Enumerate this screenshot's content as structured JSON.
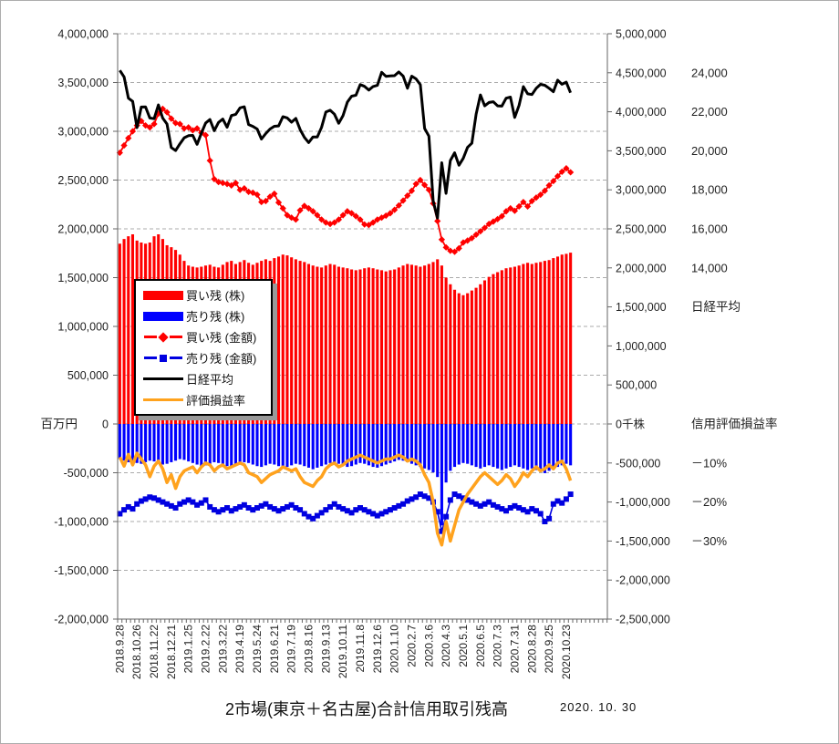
{
  "title": "2市場(東京＋名古屋)合計信用取引残高",
  "as_of_date": "2020. 10. 30",
  "units": {
    "left_axis_unit": "百万円",
    "right_axis_zero_label": "0千株"
  },
  "annotations": {
    "nikkei_label": "日経平均",
    "ratio_header": "信用評価損益率"
  },
  "legend": [
    {
      "label": "買い残 (株)",
      "type": "bar",
      "color": "#ff0000"
    },
    {
      "label": "売り残 (株)",
      "type": "bar",
      "color": "#0000ff"
    },
    {
      "label": "買い残 (金額)",
      "type": "line-diamond",
      "color": "#ff0000"
    },
    {
      "label": "売り残 (金額)",
      "type": "line-square",
      "color": "#0000e0"
    },
    {
      "label": "日経平均",
      "type": "line",
      "color": "#000000"
    },
    {
      "label": "評価損益率",
      "type": "line",
      "color": "#ffa21d"
    }
  ],
  "colors": {
    "red": "#ff0000",
    "blue": "#0000ff",
    "dark_blue": "#0000e0",
    "black": "#000000",
    "orange": "#ffa21d",
    "grid": "#ababab",
    "axis": "#666666"
  },
  "chart_data": {
    "type": "bar",
    "note": "combo chart: bars on right share axis (千株), amount lines on left axis (百万円), nikkei and ratio on annotation scales",
    "left_axis": {
      "min": -2000000,
      "max": 4000000,
      "step": 500000,
      "labels": [
        "4,000,000",
        "3,500,000",
        "3,000,000",
        "2,500,000",
        "2,000,000",
        "1,500,000",
        "1,000,000",
        "500,000",
        "0",
        "-500,000",
        "-1,000,000",
        "-1,500,000",
        "-2,000,000"
      ]
    },
    "right_axis": {
      "min": -2500000,
      "max": 5000000,
      "step": 500000,
      "labels": [
        "5,000,000",
        "4,500,000",
        "4,000,000",
        "3,500,000",
        "3,000,000",
        "2,500,000",
        "2,000,000",
        "1,500,000",
        "1,000,000",
        "500,000",
        "0千株",
        "-500,000",
        "-1,000,000",
        "-1,500,000",
        "-2,000,000",
        "-2,500,000"
      ]
    },
    "nikkei_scale": {
      "labels": [
        "24,000",
        "22,000",
        "20,000",
        "18,000",
        "16,000",
        "14,000"
      ],
      "values": [
        24000,
        22000,
        20000,
        18000,
        16000,
        14000
      ]
    },
    "ratio_scale": {
      "labels": [
        "－10%",
        "－20%",
        "－30%"
      ],
      "values": [
        -10,
        -20,
        -30
      ]
    },
    "n_points": 106,
    "tick_every": 4,
    "tick_labels": [
      "2018.9.28",
      "2018.10.26",
      "2018.11.22",
      "2018.12.21",
      "2019.1.25",
      "2019.2.22",
      "2019.3.22",
      "2019.4.19",
      "2019.5.24",
      "2019.6.21",
      "2019.7.19",
      "2019.8.16",
      "2019.9.13",
      "2019.10.11",
      "2019.11.8",
      "2019.12.6",
      "2020.1.10",
      "2020.2.7",
      "2020.3.6",
      "2020.4.3",
      "2020.5.1",
      "2020.6.5",
      "2020.7.3",
      "2020.7.31",
      "2020.8.28",
      "2020.9.25",
      "2020.10.23"
    ],
    "series": [
      {
        "name": "買い残 (株)",
        "unit": "千株",
        "axis": "right",
        "style": "bar",
        "color": "#ff0000",
        "values": [
          2310,
          2370,
          2405,
          2430,
          2350,
          2325,
          2310,
          2325,
          2405,
          2430,
          2370,
          2290,
          2265,
          2230,
          2170,
          2090,
          2030,
          2015,
          2005,
          2015,
          2030,
          2040,
          2015,
          2005,
          2040,
          2075,
          2090,
          2050,
          2075,
          2100,
          2065,
          2040,
          2065,
          2090,
          2110,
          2090,
          2125,
          2145,
          2170,
          2160,
          2135,
          2110,
          2090,
          2075,
          2050,
          2030,
          2015,
          2005,
          2030,
          2050,
          2040,
          2015,
          2005,
          1995,
          1980,
          1970,
          1980,
          1995,
          2005,
          1995,
          1980,
          1970,
          1955,
          1970,
          1980,
          2005,
          2030,
          2050,
          2040,
          2030,
          2015,
          2030,
          2050,
          2075,
          2110,
          2030,
          1875,
          1790,
          1720,
          1675,
          1650,
          1675,
          1710,
          1745,
          1790,
          1840,
          1885,
          1920,
          1945,
          1970,
          1995,
          2005,
          2015,
          2030,
          2050,
          2065,
          2050,
          2065,
          2075,
          2090,
          2100,
          2125,
          2145,
          2170,
          2180,
          2195
        ],
        "scale": 1000
      },
      {
        "name": "売り残 (株)",
        "unit": "千株",
        "axis": "right",
        "style": "bar",
        "color": "#0000ff",
        "values": [
          -450,
          -470,
          -490,
          -480,
          -500,
          -510,
          -490,
          -470,
          -480,
          -500,
          -520,
          -510,
          -490,
          -470,
          -450,
          -460,
          -480,
          -500,
          -520,
          -540,
          -530,
          -510,
          -490,
          -500,
          -520,
          -540,
          -550,
          -530,
          -510,
          -490,
          -500,
          -520,
          -540,
          -550,
          -530,
          -510,
          -520,
          -540,
          -560,
          -550,
          -530,
          -510,
          -520,
          -540,
          -560,
          -580,
          -560,
          -540,
          -520,
          -500,
          -490,
          -510,
          -530,
          -550,
          -540,
          -520,
          -500,
          -510,
          -530,
          -550,
          -560,
          -540,
          -520,
          -500,
          -480,
          -460,
          -470,
          -490,
          -510,
          -530,
          -550,
          -570,
          -590,
          -620,
          -680,
          -1300,
          -750,
          -600,
          -550,
          -520,
          -500,
          -510,
          -530,
          -550,
          -570,
          -550,
          -530,
          -550,
          -570,
          -590,
          -570,
          -550,
          -530,
          -550,
          -570,
          -590,
          -570,
          -590,
          -610,
          -630,
          -600,
          -570,
          -550,
          -530,
          -510,
          -530
        ],
        "scale": 1000
      },
      {
        "name": "買い残 (金額)",
        "unit": "百万円",
        "axis": "left",
        "style": "line-diamond",
        "color": "#ff0000",
        "values": [
          2780,
          2855,
          2930,
          3000,
          3060,
          3105,
          3060,
          3040,
          3075,
          3180,
          3230,
          3195,
          3130,
          3085,
          3075,
          3030,
          3040,
          3010,
          3030,
          2985,
          2960,
          2700,
          2510,
          2480,
          2470,
          2460,
          2445,
          2470,
          2400,
          2415,
          2380,
          2370,
          2350,
          2275,
          2285,
          2330,
          2360,
          2270,
          2210,
          2140,
          2115,
          2095,
          2190,
          2235,
          2210,
          2180,
          2140,
          2095,
          2065,
          2050,
          2065,
          2095,
          2140,
          2180,
          2160,
          2130,
          2095,
          2045,
          2040,
          2065,
          2095,
          2115,
          2135,
          2160,
          2195,
          2240,
          2290,
          2340,
          2390,
          2460,
          2500,
          2450,
          2400,
          2260,
          2080,
          1890,
          1810,
          1775,
          1765,
          1800,
          1860,
          1880,
          1905,
          1940,
          1975,
          2010,
          2050,
          2075,
          2100,
          2130,
          2180,
          2210,
          2185,
          2230,
          2275,
          2230,
          2285,
          2320,
          2350,
          2390,
          2445,
          2490,
          2540,
          2585,
          2620,
          2580
        ],
        "scale": 1000
      },
      {
        "name": "売り残 (金額)",
        "unit": "百万円",
        "axis": "left",
        "style": "line-square",
        "color": "#0000e0",
        "values": [
          -920,
          -880,
          -850,
          -870,
          -820,
          -790,
          -770,
          -750,
          -760,
          -780,
          -800,
          -820,
          -840,
          -860,
          -820,
          -800,
          -780,
          -800,
          -830,
          -810,
          -780,
          -850,
          -880,
          -900,
          -880,
          -860,
          -890,
          -870,
          -850,
          -830,
          -860,
          -880,
          -860,
          -840,
          -820,
          -850,
          -870,
          -890,
          -870,
          -850,
          -830,
          -860,
          -880,
          -920,
          -950,
          -970,
          -940,
          -910,
          -880,
          -850,
          -820,
          -850,
          -870,
          -890,
          -910,
          -880,
          -860,
          -880,
          -900,
          -920,
          -940,
          -920,
          -900,
          -880,
          -860,
          -840,
          -820,
          -790,
          -770,
          -750,
          -720,
          -740,
          -760,
          -800,
          -900,
          -1100,
          -950,
          -780,
          -720,
          -740,
          -760,
          -780,
          -800,
          -820,
          -840,
          -820,
          -800,
          -830,
          -850,
          -870,
          -890,
          -860,
          -840,
          -860,
          -880,
          -900,
          -870,
          -890,
          -920,
          -1000,
          -970,
          -820,
          -790,
          -810,
          -770,
          -720
        ],
        "scale": 1000
      },
      {
        "name": "日経平均",
        "unit": "円",
        "axis": "nikkei",
        "style": "line",
        "color": "#000000",
        "values": [
          24120,
          23784,
          22695,
          22532,
          21185,
          22243,
          22250,
          21680,
          21646,
          22351,
          21679,
          21375,
          20166,
          20015,
          20360,
          20666,
          20774,
          20788,
          20333,
          20901,
          21426,
          21603,
          21026,
          21451,
          21627,
          21206,
          21808,
          21871,
          22201,
          22259,
          21345,
          21250,
          21117,
          20601,
          20884,
          21117,
          21259,
          21276,
          21746,
          21686,
          21467,
          21658,
          21087,
          20685,
          20419,
          20711,
          20704,
          21200,
          21988,
          22079,
          21879,
          21410,
          21799,
          22493,
          22800,
          22851,
          23392,
          23303,
          23113,
          23294,
          23354,
          24023,
          23817,
          23838,
          23851,
          24041,
          23827,
          23205,
          23828,
          23688,
          23387,
          21143,
          20750,
          17431,
          16553,
          19389,
          17820,
          19499,
          19897,
          19262,
          19619,
          20179,
          20388,
          21878,
          22864,
          22305,
          22478,
          22512,
          22306,
          22291,
          22696,
          22751,
          21710,
          22330,
          23289,
          22920,
          22882,
          23205,
          23406,
          23360,
          23205,
          23030,
          23620,
          23411,
          23517,
          22977
        ],
        "scale": 1
      },
      {
        "name": "評価損益率",
        "unit": "%",
        "axis": "ratio",
        "style": "line",
        "color": "#ffa21d",
        "values": [
          -8.5,
          -10.8,
          -7.8,
          -10.5,
          -7.5,
          -9,
          -10.5,
          -13.5,
          -10.8,
          -9.5,
          -11.5,
          -15,
          -13,
          -16.5,
          -13.5,
          -12,
          -11.5,
          -11,
          -12.5,
          -11,
          -10,
          -10.5,
          -12,
          -11,
          -10.5,
          -11.5,
          -11,
          -10.5,
          -10,
          -10.5,
          -12.5,
          -13,
          -13.5,
          -15,
          -14,
          -13,
          -12.5,
          -12,
          -11,
          -11.5,
          -12,
          -11.5,
          -13.5,
          -15,
          -15.5,
          -16,
          -14.5,
          -13.5,
          -11.5,
          -10.5,
          -10,
          -11,
          -10.5,
          -9.5,
          -9,
          -8.5,
          -8,
          -8.5,
          -9,
          -9.5,
          -10,
          -9.5,
          -9,
          -9,
          -8.5,
          -8,
          -8.5,
          -9.5,
          -9,
          -9.5,
          -10.5,
          -13,
          -15,
          -20,
          -28,
          -31,
          -25,
          -30,
          -26,
          -22,
          -20,
          -18,
          -16.5,
          -15,
          -13.5,
          -12.5,
          -13.5,
          -14.5,
          -15.5,
          -14.5,
          -13,
          -14,
          -16,
          -14.5,
          -12.5,
          -13.5,
          -12,
          -11,
          -12,
          -11.5,
          -10.5,
          -11.5,
          -10,
          -9.5,
          -11.5,
          -14.5
        ],
        "scale": 1
      }
    ]
  }
}
